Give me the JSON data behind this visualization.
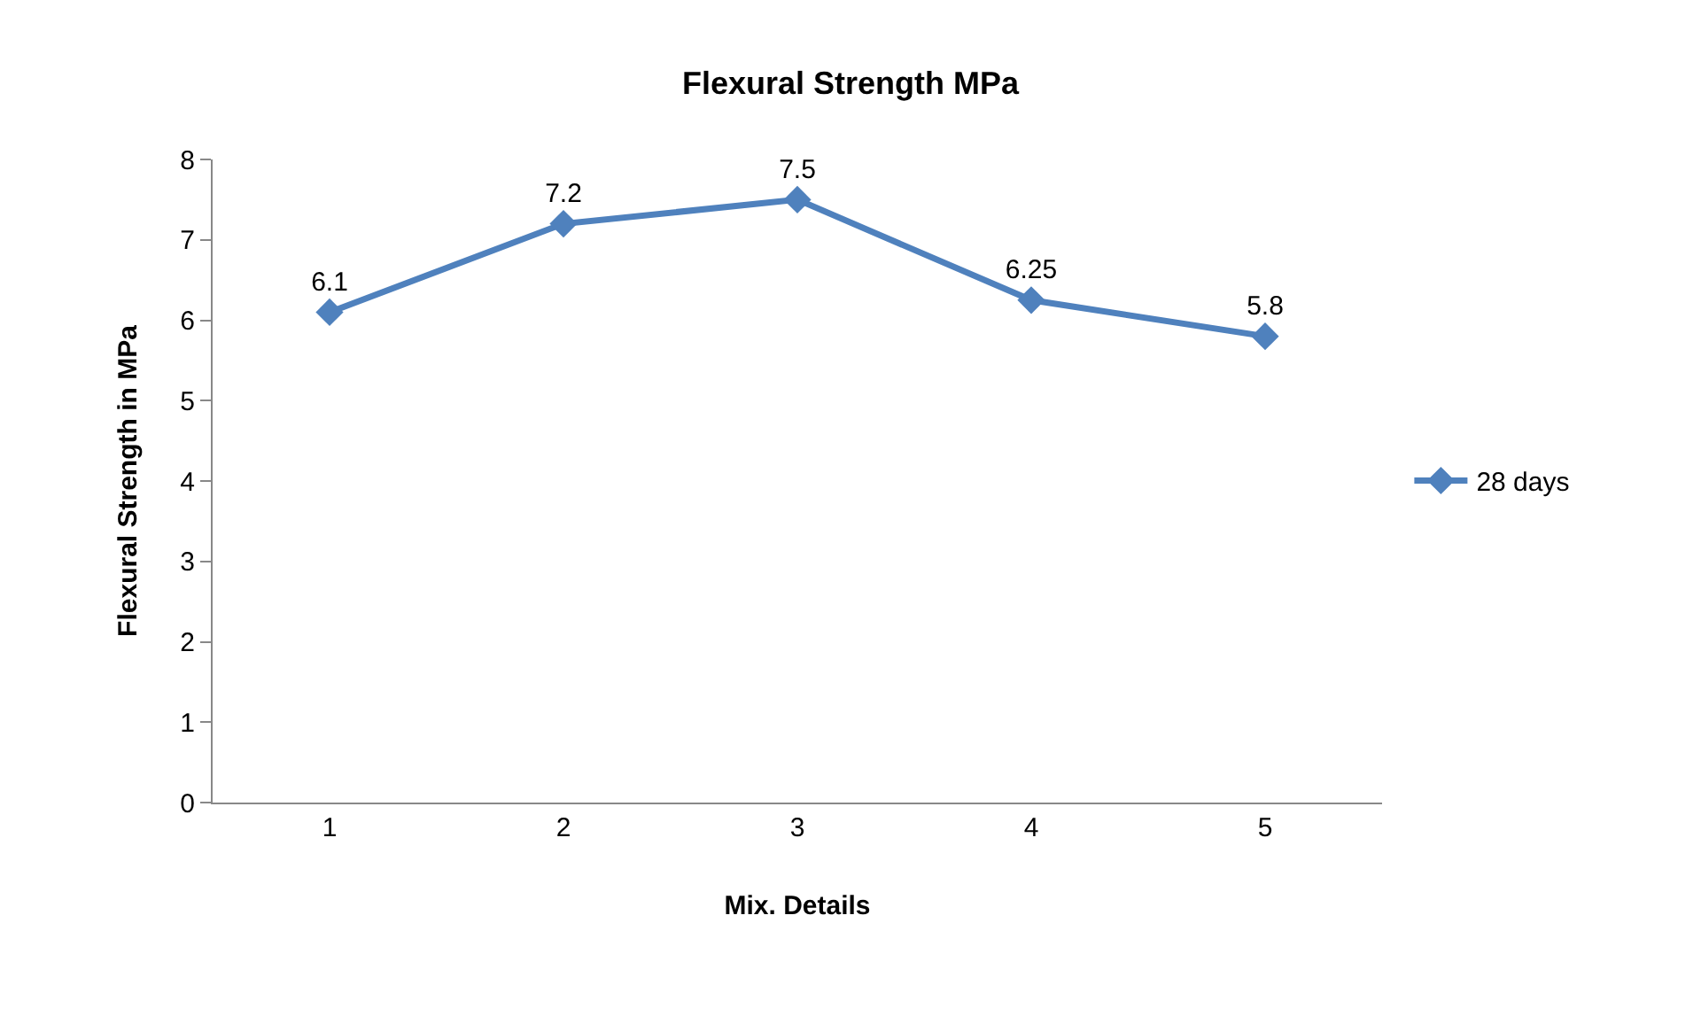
{
  "chart_data": {
    "type": "line",
    "title": "Flexural Strength MPa",
    "xlabel": "Mix. Details",
    "ylabel": "Flexural Strength in MPa",
    "categories": [
      "1",
      "2",
      "3",
      "4",
      "5"
    ],
    "series": [
      {
        "name": "28 days",
        "color": "#4f81bd",
        "values": [
          6.1,
          7.2,
          7.5,
          6.25,
          5.8
        ]
      }
    ],
    "ylim": [
      0,
      8
    ],
    "yticks": [
      0,
      1,
      2,
      3,
      4,
      5,
      6,
      7,
      8
    ],
    "grid": false,
    "legend": "right",
    "marker": "diamond",
    "line_style": "solid",
    "data_labels": true
  }
}
